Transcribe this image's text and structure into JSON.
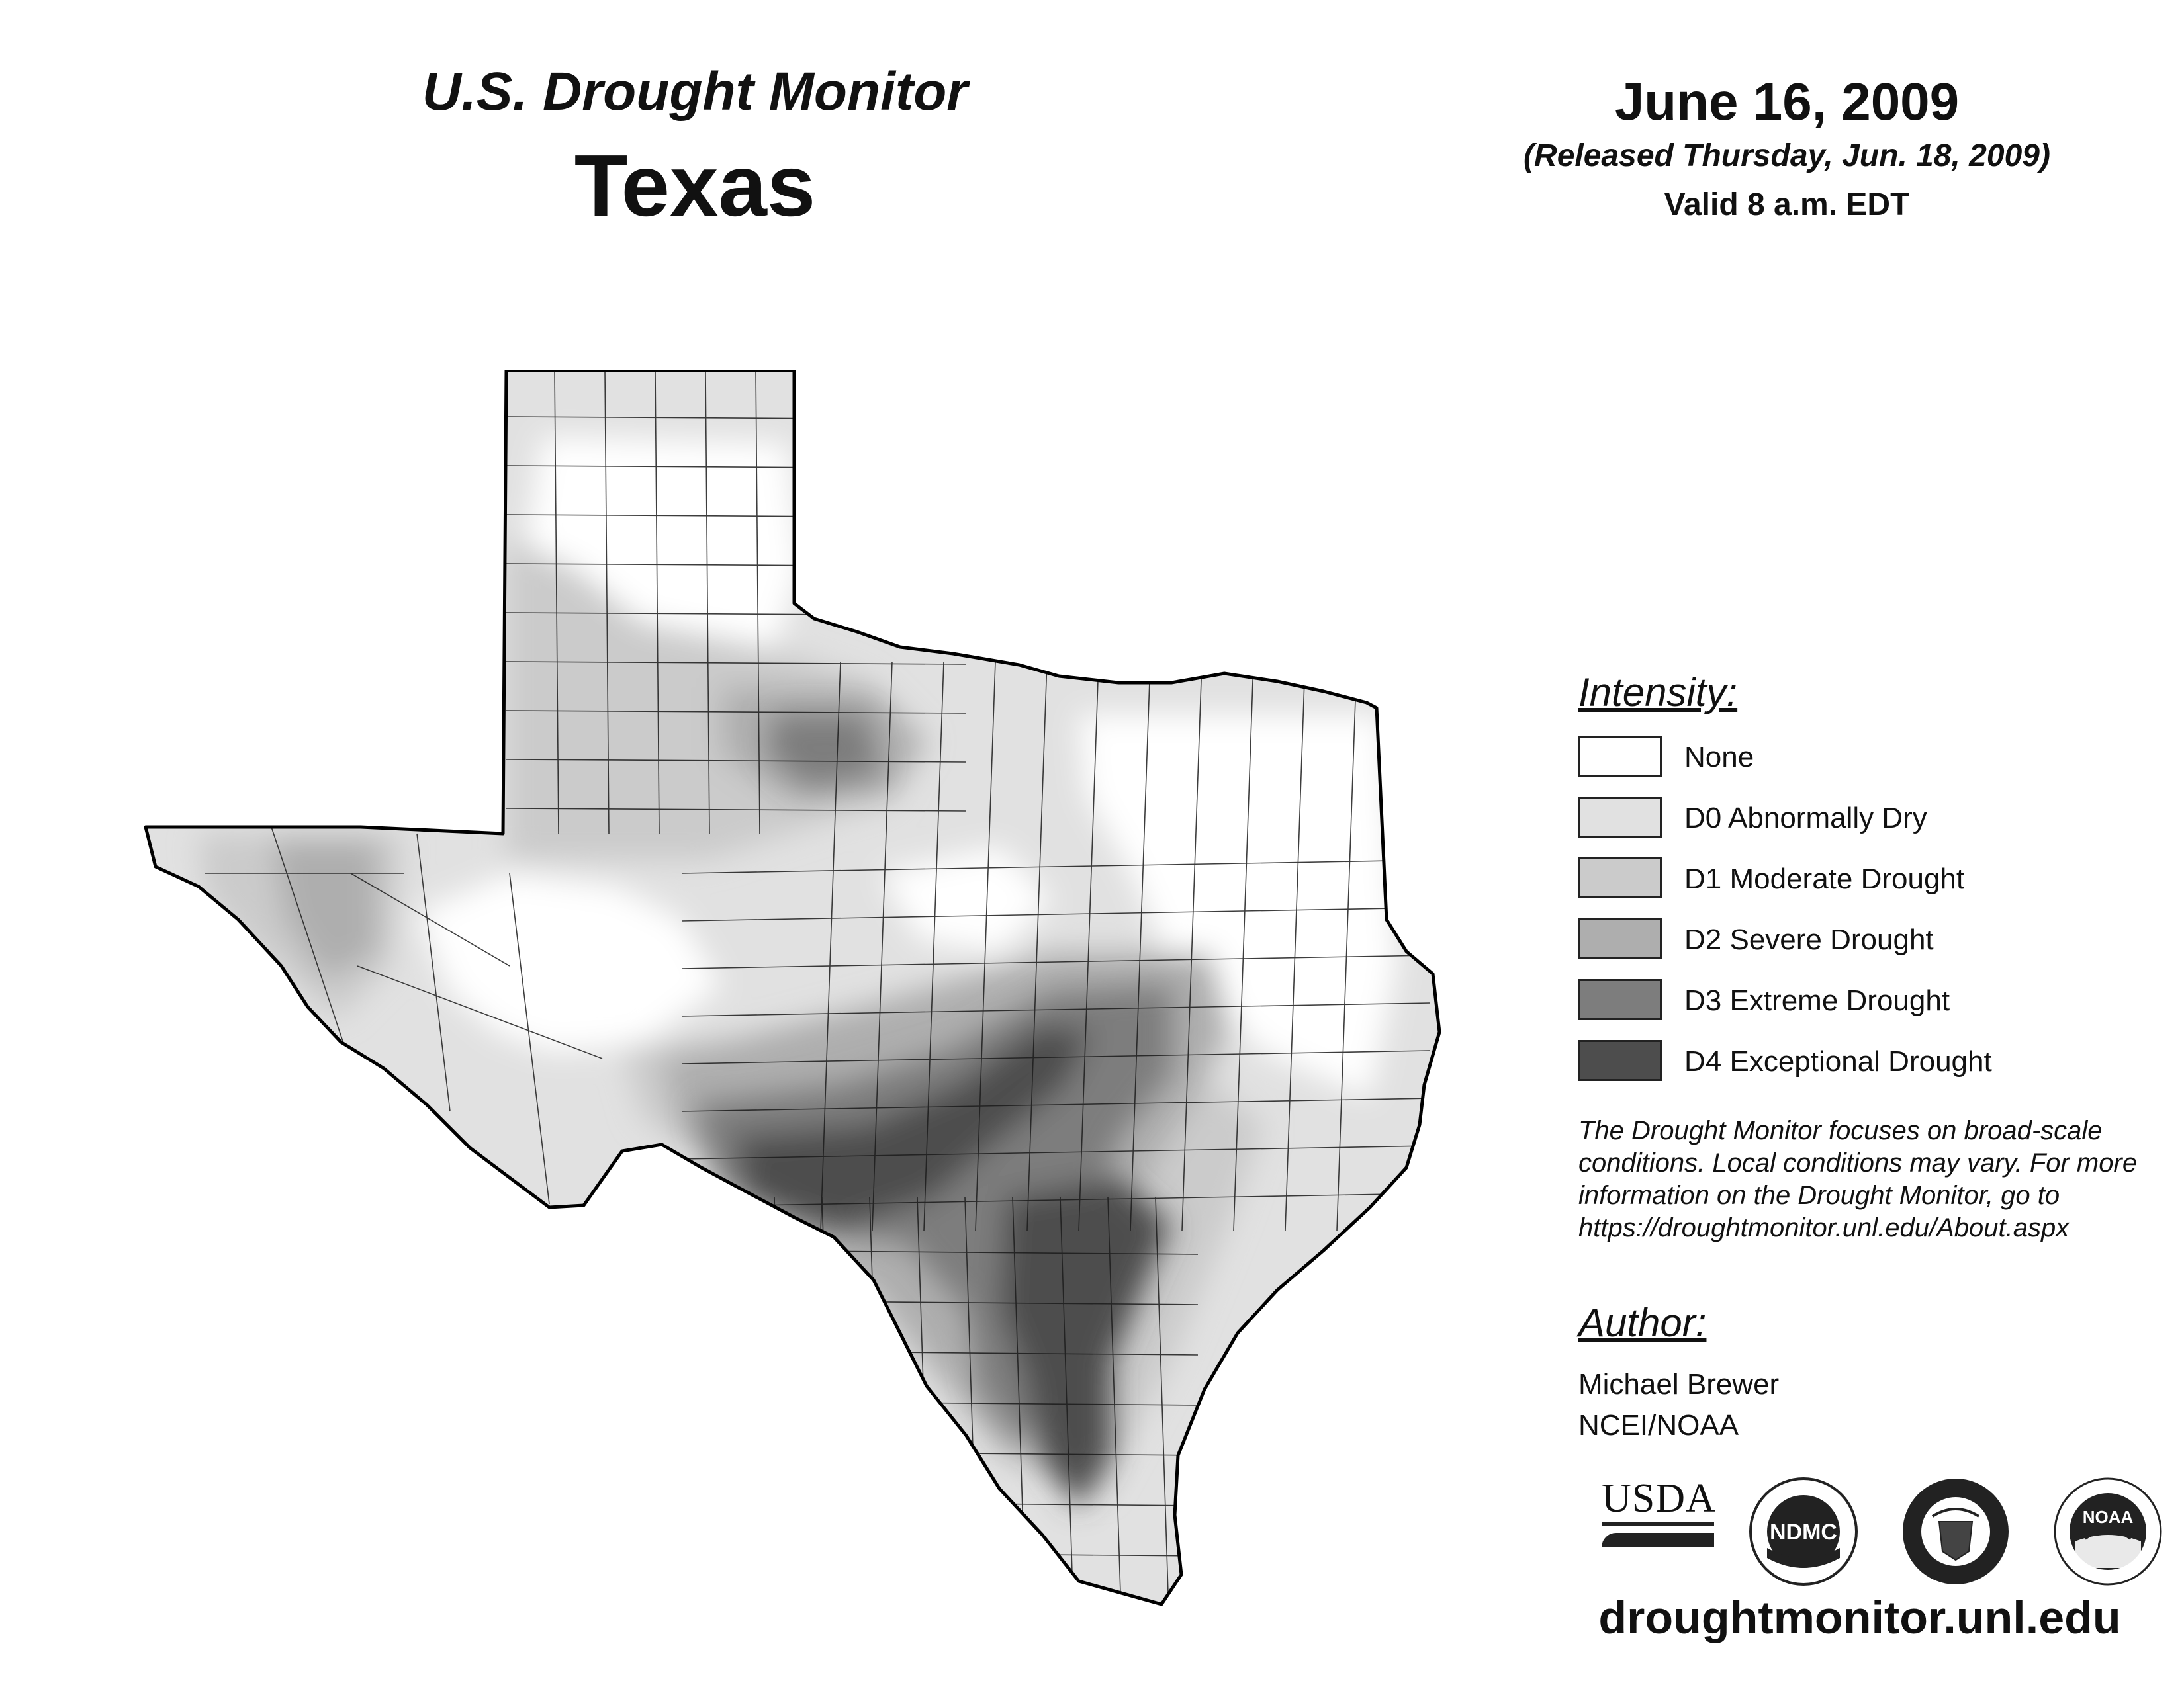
{
  "header": {
    "monitor_title": "U.S. Drought Monitor",
    "region": "Texas",
    "date": "June 16, 2009",
    "released": "(Released Thursday, Jun. 18, 2009)",
    "valid": "Valid 8 a.m. EDT"
  },
  "legend": {
    "title": "Intensity:",
    "items": [
      {
        "label": "None",
        "color": "#ffffff"
      },
      {
        "label": "D0 Abnormally Dry",
        "color": "#e1e1e1"
      },
      {
        "label": "D1 Moderate Drought",
        "color": "#cbcbcb"
      },
      {
        "label": "D2 Severe Drought",
        "color": "#aeaeae"
      },
      {
        "label": "D3 Extreme Drought",
        "color": "#7d7d7d"
      },
      {
        "label": "D4 Exceptional Drought",
        "color": "#4d4d4d"
      }
    ]
  },
  "note": {
    "lines": [
      "The Drought Monitor focuses on broad-scale",
      "conditions. Local conditions may vary. For more",
      "information on the Drought Monitor, go to",
      "https://droughtmonitor.unl.edu/About.aspx"
    ]
  },
  "author": {
    "title": "Author:",
    "name": "Michael Brewer",
    "org": "NCEI/NOAA"
  },
  "logos": {
    "usda": "USDA",
    "ndmc": "NDMC",
    "noaa": "NOAA"
  },
  "footer": {
    "url": "droughtmonitor.unl.edu"
  },
  "map_regions": [
    {
      "category": "D0",
      "color": "#e1e1e1"
    },
    {
      "category": "D1",
      "color": "#cbcbcb"
    },
    {
      "category": "D2",
      "color": "#aeaeae"
    },
    {
      "category": "D3",
      "color": "#7d7d7d"
    },
    {
      "category": "D4",
      "color": "#4d4d4d"
    }
  ]
}
